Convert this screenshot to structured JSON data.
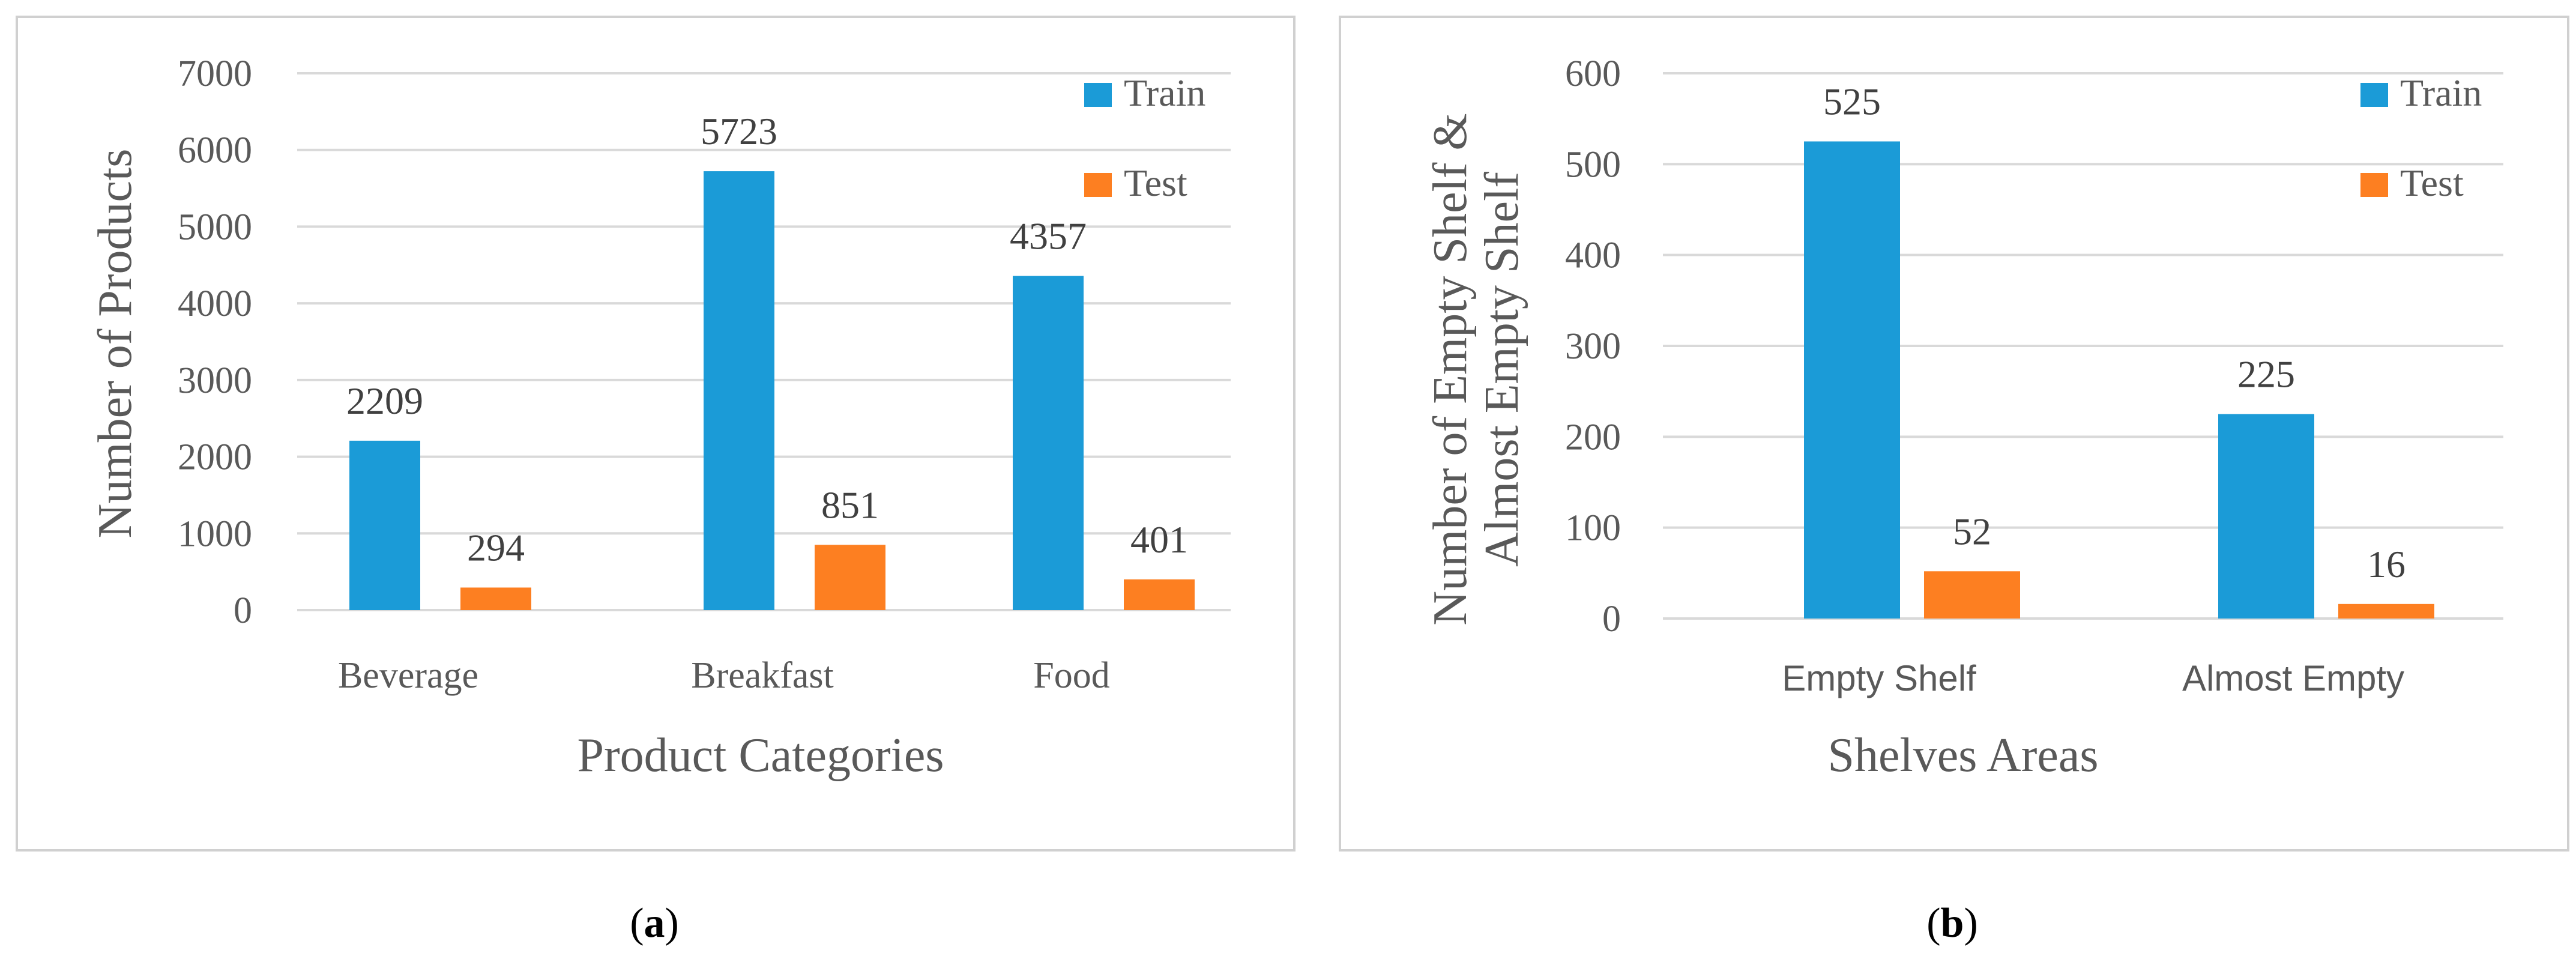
{
  "colors": {
    "train": "#1b9bd7",
    "test": "#fd7f21",
    "grid": "#d9d9d9",
    "frame": "#d0d0d0",
    "text": "#595959"
  },
  "chart_data": [
    {
      "type": "bar",
      "caption_letter": "a",
      "categories": [
        "Beverage",
        "Breakfast",
        "Food"
      ],
      "series": [
        {
          "name": "Train",
          "values": [
            2209,
            5723,
            4357
          ]
        },
        {
          "name": "Test",
          "values": [
            294,
            851,
            401
          ]
        }
      ],
      "ylim": [
        0,
        7000
      ],
      "yticks": [
        0,
        1000,
        2000,
        3000,
        4000,
        5000,
        6000,
        7000
      ],
      "xlabel": "Product Categories",
      "ylabel": [
        "Number of Products"
      ],
      "legend_position": "top-right",
      "grid": true
    },
    {
      "type": "bar",
      "caption_letter": "b",
      "categories": [
        "Empty Shelf",
        "Almost Empty"
      ],
      "series": [
        {
          "name": "Train",
          "values": [
            525,
            225
          ]
        },
        {
          "name": "Test",
          "values": [
            52,
            16
          ]
        }
      ],
      "ylim": [
        0,
        600
      ],
      "yticks": [
        0,
        100,
        200,
        300,
        400,
        500,
        600
      ],
      "xlabel": "Shelves Areas",
      "ylabel": [
        "Number of Empty Shelf &",
        "Almost Empty Shelf"
      ],
      "legend_position": "top-right",
      "grid": true
    }
  ]
}
